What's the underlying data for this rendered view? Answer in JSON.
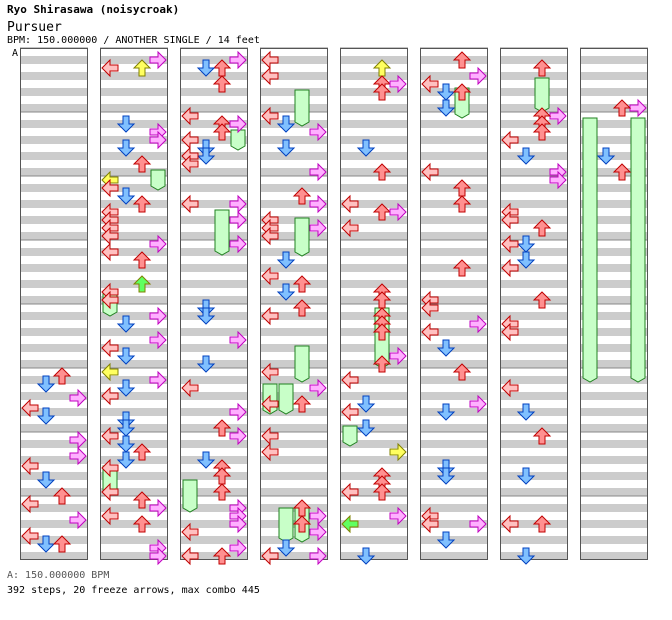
{
  "header": {
    "artist_line": "Ryo Shirasawa (noisycroak)",
    "song_title": "Pursuer",
    "meta_line": "BPM: 150.000000 / ANOTHER SINGLE / 14 feet"
  },
  "bpm_marker": "A",
  "footer": {
    "bpm_legend": "A: 150.000000 BPM",
    "stats": "392 steps, 20 freeze arrows, max combo 445"
  },
  "colors": {
    "left": "#ffc0c0",
    "down": "#80c0ff",
    "up": "#ff9090",
    "right": "#ffb0ff",
    "yellow": "#ffff60",
    "green": "#60ff60",
    "freeze": "#c8ffc8",
    "stripe": "#cccccc"
  },
  "chart": {
    "columns": 8,
    "measures_per_column": 8,
    "total_steps": 392,
    "freeze_arrows": 20,
    "max_combo": 445
  }
}
